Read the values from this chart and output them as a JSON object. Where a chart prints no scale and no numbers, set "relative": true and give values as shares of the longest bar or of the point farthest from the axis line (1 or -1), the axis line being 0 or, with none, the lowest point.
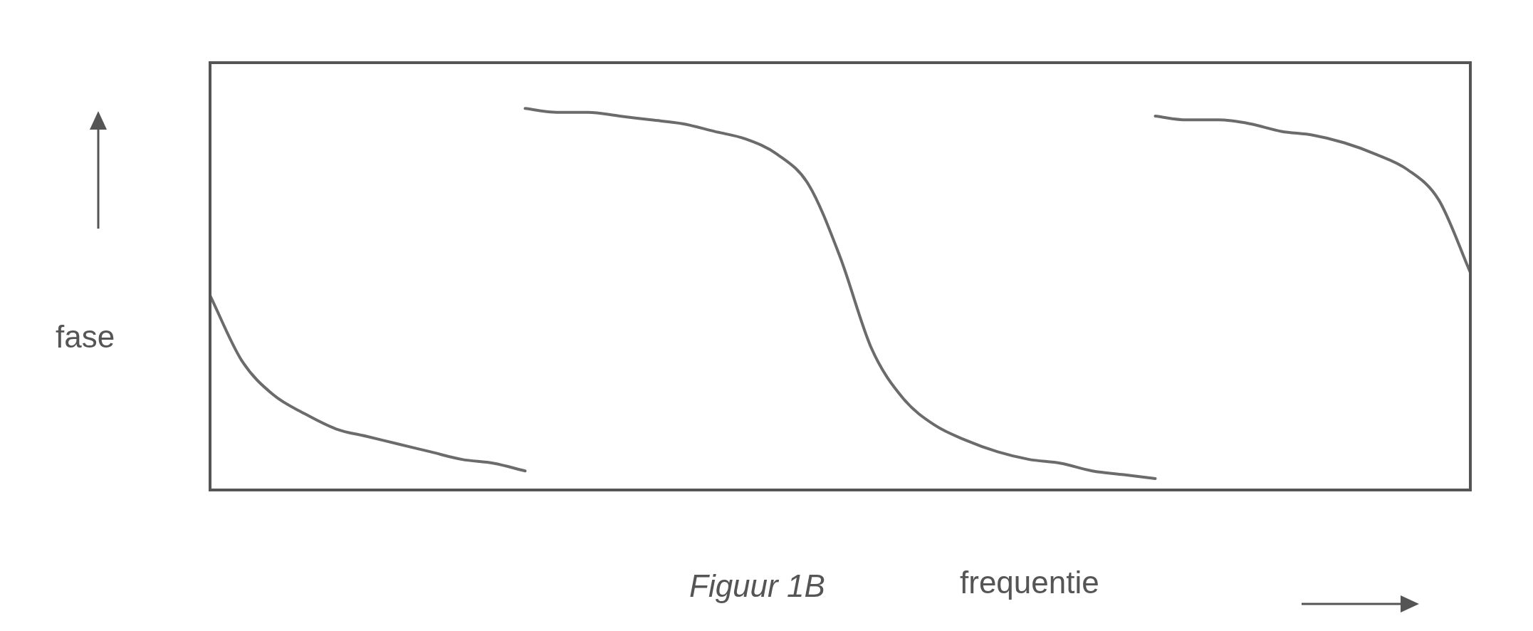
{
  "chart_data": {
    "type": "line",
    "relative": true,
    "xlabel": "frequentie",
    "ylabel": "fase",
    "annotations": [
      "Figuur 1B"
    ],
    "marker": "none",
    "line_style": "solid",
    "categories": [
      null,
      null,
      null,
      null,
      null,
      null,
      null,
      null,
      null,
      null,
      null,
      null,
      null,
      null,
      null,
      null,
      null,
      null,
      null,
      null,
      null,
      null,
      null,
      null,
      null,
      null,
      null,
      null,
      null,
      null,
      null,
      null,
      null,
      null,
      null,
      null,
      null,
      null,
      null,
      null,
      null
    ],
    "series": [
      {
        "color": "#6b6b6b",
        "values": [
          0.51,
          0.34,
          0.25,
          0.2,
          0.16,
          0.14,
          0.12,
          0.1,
          0.08,
          0.07,
          0.05,
          null,
          null,
          null,
          null,
          null,
          null,
          null,
          null,
          null,
          null,
          null,
          null,
          null,
          null,
          null,
          null,
          null,
          null,
          null,
          0.98,
          0.97,
          0.97,
          0.96,
          0.94,
          0.93,
          0.91,
          0.88,
          0.84,
          0.76,
          0.57
        ]
      },
      {
        "color": "#6b6b6b",
        "values": [
          null,
          null,
          null,
          null,
          null,
          null,
          null,
          null,
          null,
          null,
          1.0,
          0.99,
          0.99,
          0.98,
          0.97,
          0.96,
          0.94,
          0.92,
          0.88,
          0.8,
          0.61,
          0.37,
          0.24,
          0.17,
          0.13,
          0.1,
          0.08,
          0.07,
          0.05,
          0.04,
          0.03,
          null,
          null,
          null,
          null,
          null,
          null,
          null,
          null,
          null,
          null
        ]
      }
    ]
  }
}
